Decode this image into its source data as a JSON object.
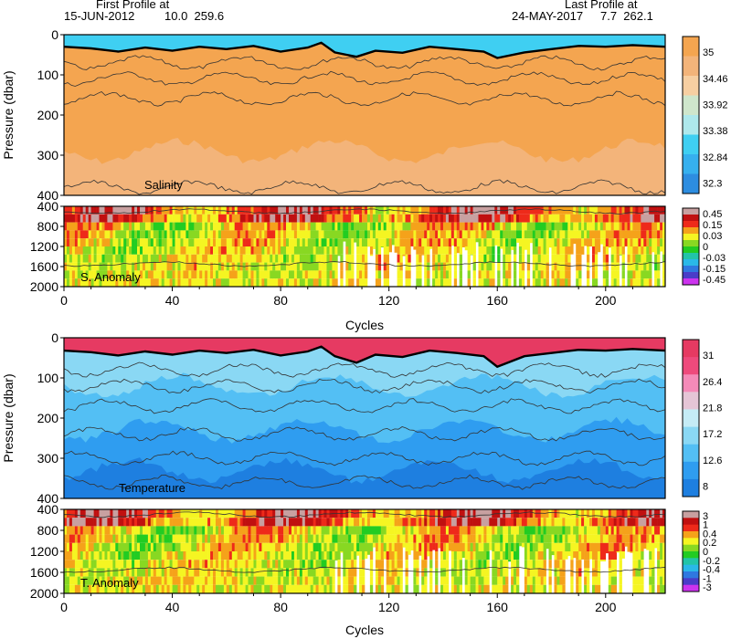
{
  "header": {
    "first_label": "First Profile at",
    "first_date": "15-JUN-2012",
    "first_pos": "10.0  259.6",
    "last_label": "Last Profile at",
    "last_date": "24-MAY-2017",
    "last_pos": "7.7  262.1"
  },
  "colors": {
    "salinity": [
      "#2d8de0",
      "#36b0ee",
      "#3fcff2",
      "#aee8ec",
      "#cfe6cc",
      "#f7cfa2",
      "#f3b47a",
      "#f4a550"
    ],
    "salinity_anomaly": [
      "#cc33ee",
      "#4a3cc8",
      "#2f78e0",
      "#2ab8e8",
      "#22c4a8",
      "#22cc22",
      "#88d822",
      "#f5f522",
      "#f5a21a",
      "#ee2a1a",
      "#c01010",
      "#c8a0a0"
    ],
    "temperature": [
      "#1e7fe0",
      "#2f9df0",
      "#53bff4",
      "#8ad8f4",
      "#c5ecf6",
      "#e5c5d6",
      "#f48ab8",
      "#ee4a7c",
      "#e63a62"
    ],
    "temperature_anomaly": [
      "#cc33ee",
      "#4a3cc8",
      "#2f78e0",
      "#2ab8e8",
      "#22c4a8",
      "#22cc22",
      "#88d822",
      "#f5f522",
      "#f5a21a",
      "#ee2a1a",
      "#c01010",
      "#c8a0a0"
    ]
  },
  "chart_data": [
    {
      "type": "heatmap",
      "name": "salinity-section",
      "label": "Salinity",
      "ylabel": "Pressure (dbar)",
      "xlim": [
        0,
        222
      ],
      "ylim": [
        400,
        0
      ],
      "yticks": [
        0,
        100,
        200,
        300,
        400
      ],
      "colorbar": [
        "35",
        "34.46",
        "33.92",
        "33.38",
        "32.84",
        "32.3"
      ],
      "mixed_layer_depth": [
        [
          0,
          30
        ],
        [
          10,
          34
        ],
        [
          20,
          42
        ],
        [
          30,
          32
        ],
        [
          40,
          40
        ],
        [
          50,
          30
        ],
        [
          60,
          36
        ],
        [
          70,
          28
        ],
        [
          80,
          42
        ],
        [
          90,
          32
        ],
        [
          95,
          20
        ],
        [
          100,
          44
        ],
        [
          108,
          55
        ],
        [
          115,
          40
        ],
        [
          125,
          45
        ],
        [
          135,
          30
        ],
        [
          145,
          36
        ],
        [
          155,
          42
        ],
        [
          160,
          58
        ],
        [
          170,
          44
        ],
        [
          180,
          36
        ],
        [
          190,
          28
        ],
        [
          200,
          30
        ],
        [
          210,
          26
        ],
        [
          222,
          30
        ]
      ]
    },
    {
      "type": "heatmap",
      "name": "salinity-anomaly-section",
      "label": "S. Anomaly",
      "ylabel": "",
      "xlim": [
        0,
        222
      ],
      "ylim": [
        2000,
        400
      ],
      "yticks": [
        400,
        800,
        1200,
        1600,
        2000
      ],
      "colorbar": [
        "0.45",
        "0.15",
        "0.03",
        "0",
        "-0.03",
        "-0.15",
        "-0.45"
      ]
    },
    {
      "type": "heatmap",
      "name": "temperature-section",
      "label": "Temperature",
      "ylabel": "Pressure (dbar)",
      "xlim": [
        0,
        222
      ],
      "ylim": [
        400,
        0
      ],
      "yticks": [
        0,
        100,
        200,
        300,
        400
      ],
      "colorbar": [
        "31",
        "26.4",
        "21.8",
        "17.2",
        "12.6",
        "8"
      ],
      "mixed_layer_depth": [
        [
          0,
          32
        ],
        [
          10,
          36
        ],
        [
          20,
          44
        ],
        [
          30,
          34
        ],
        [
          40,
          42
        ],
        [
          50,
          32
        ],
        [
          60,
          38
        ],
        [
          70,
          30
        ],
        [
          80,
          44
        ],
        [
          90,
          34
        ],
        [
          95,
          22
        ],
        [
          100,
          46
        ],
        [
          108,
          62
        ],
        [
          115,
          42
        ],
        [
          125,
          48
        ],
        [
          135,
          32
        ],
        [
          145,
          38
        ],
        [
          155,
          46
        ],
        [
          160,
          72
        ],
        [
          170,
          46
        ],
        [
          180,
          38
        ],
        [
          190,
          30
        ],
        [
          200,
          32
        ],
        [
          210,
          28
        ],
        [
          222,
          32
        ]
      ]
    },
    {
      "type": "heatmap",
      "name": "temperature-anomaly-section",
      "label": "T. Anomaly",
      "ylabel": "",
      "xlim": [
        0,
        222
      ],
      "ylim": [
        2000,
        400
      ],
      "yticks": [
        400,
        800,
        1200,
        1600,
        2000
      ],
      "colorbar": [
        "3",
        "1",
        "0.4",
        "0.2",
        "0",
        "-0.2",
        "-0.4",
        "-1",
        "-3"
      ]
    }
  ],
  "xaxis": {
    "label": "Cycles",
    "ticks": [
      0,
      40,
      80,
      120,
      160,
      200
    ]
  }
}
